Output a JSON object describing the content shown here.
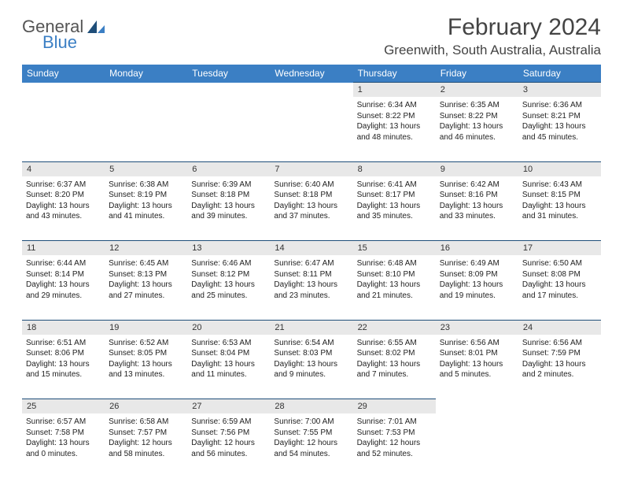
{
  "logo": {
    "text1": "General",
    "text2": "Blue"
  },
  "title": "February 2024",
  "location": "Greenwith, South Australia, Australia",
  "colors": {
    "header_bg": "#3b7fc4",
    "header_text": "#ffffff",
    "daynum_bg": "#e8e8e8",
    "daynum_border": "#1f4e79",
    "body_text": "#222222",
    "title_text": "#444444",
    "logo_gray": "#555555",
    "logo_blue": "#3b7fc4",
    "page_bg": "#ffffff"
  },
  "weekdays": [
    "Sunday",
    "Monday",
    "Tuesday",
    "Wednesday",
    "Thursday",
    "Friday",
    "Saturday"
  ],
  "weeks": [
    {
      "nums": [
        "",
        "",
        "",
        "",
        "1",
        "2",
        "3"
      ],
      "cells": [
        null,
        null,
        null,
        null,
        {
          "sr": "Sunrise: 6:34 AM",
          "ss": "Sunset: 8:22 PM",
          "d1": "Daylight: 13 hours",
          "d2": "and 48 minutes."
        },
        {
          "sr": "Sunrise: 6:35 AM",
          "ss": "Sunset: 8:22 PM",
          "d1": "Daylight: 13 hours",
          "d2": "and 46 minutes."
        },
        {
          "sr": "Sunrise: 6:36 AM",
          "ss": "Sunset: 8:21 PM",
          "d1": "Daylight: 13 hours",
          "d2": "and 45 minutes."
        }
      ]
    },
    {
      "nums": [
        "4",
        "5",
        "6",
        "7",
        "8",
        "9",
        "10"
      ],
      "cells": [
        {
          "sr": "Sunrise: 6:37 AM",
          "ss": "Sunset: 8:20 PM",
          "d1": "Daylight: 13 hours",
          "d2": "and 43 minutes."
        },
        {
          "sr": "Sunrise: 6:38 AM",
          "ss": "Sunset: 8:19 PM",
          "d1": "Daylight: 13 hours",
          "d2": "and 41 minutes."
        },
        {
          "sr": "Sunrise: 6:39 AM",
          "ss": "Sunset: 8:18 PM",
          "d1": "Daylight: 13 hours",
          "d2": "and 39 minutes."
        },
        {
          "sr": "Sunrise: 6:40 AM",
          "ss": "Sunset: 8:18 PM",
          "d1": "Daylight: 13 hours",
          "d2": "and 37 minutes."
        },
        {
          "sr": "Sunrise: 6:41 AM",
          "ss": "Sunset: 8:17 PM",
          "d1": "Daylight: 13 hours",
          "d2": "and 35 minutes."
        },
        {
          "sr": "Sunrise: 6:42 AM",
          "ss": "Sunset: 8:16 PM",
          "d1": "Daylight: 13 hours",
          "d2": "and 33 minutes."
        },
        {
          "sr": "Sunrise: 6:43 AM",
          "ss": "Sunset: 8:15 PM",
          "d1": "Daylight: 13 hours",
          "d2": "and 31 minutes."
        }
      ]
    },
    {
      "nums": [
        "11",
        "12",
        "13",
        "14",
        "15",
        "16",
        "17"
      ],
      "cells": [
        {
          "sr": "Sunrise: 6:44 AM",
          "ss": "Sunset: 8:14 PM",
          "d1": "Daylight: 13 hours",
          "d2": "and 29 minutes."
        },
        {
          "sr": "Sunrise: 6:45 AM",
          "ss": "Sunset: 8:13 PM",
          "d1": "Daylight: 13 hours",
          "d2": "and 27 minutes."
        },
        {
          "sr": "Sunrise: 6:46 AM",
          "ss": "Sunset: 8:12 PM",
          "d1": "Daylight: 13 hours",
          "d2": "and 25 minutes."
        },
        {
          "sr": "Sunrise: 6:47 AM",
          "ss": "Sunset: 8:11 PM",
          "d1": "Daylight: 13 hours",
          "d2": "and 23 minutes."
        },
        {
          "sr": "Sunrise: 6:48 AM",
          "ss": "Sunset: 8:10 PM",
          "d1": "Daylight: 13 hours",
          "d2": "and 21 minutes."
        },
        {
          "sr": "Sunrise: 6:49 AM",
          "ss": "Sunset: 8:09 PM",
          "d1": "Daylight: 13 hours",
          "d2": "and 19 minutes."
        },
        {
          "sr": "Sunrise: 6:50 AM",
          "ss": "Sunset: 8:08 PM",
          "d1": "Daylight: 13 hours",
          "d2": "and 17 minutes."
        }
      ]
    },
    {
      "nums": [
        "18",
        "19",
        "20",
        "21",
        "22",
        "23",
        "24"
      ],
      "cells": [
        {
          "sr": "Sunrise: 6:51 AM",
          "ss": "Sunset: 8:06 PM",
          "d1": "Daylight: 13 hours",
          "d2": "and 15 minutes."
        },
        {
          "sr": "Sunrise: 6:52 AM",
          "ss": "Sunset: 8:05 PM",
          "d1": "Daylight: 13 hours",
          "d2": "and 13 minutes."
        },
        {
          "sr": "Sunrise: 6:53 AM",
          "ss": "Sunset: 8:04 PM",
          "d1": "Daylight: 13 hours",
          "d2": "and 11 minutes."
        },
        {
          "sr": "Sunrise: 6:54 AM",
          "ss": "Sunset: 8:03 PM",
          "d1": "Daylight: 13 hours",
          "d2": "and 9 minutes."
        },
        {
          "sr": "Sunrise: 6:55 AM",
          "ss": "Sunset: 8:02 PM",
          "d1": "Daylight: 13 hours",
          "d2": "and 7 minutes."
        },
        {
          "sr": "Sunrise: 6:56 AM",
          "ss": "Sunset: 8:01 PM",
          "d1": "Daylight: 13 hours",
          "d2": "and 5 minutes."
        },
        {
          "sr": "Sunrise: 6:56 AM",
          "ss": "Sunset: 7:59 PM",
          "d1": "Daylight: 13 hours",
          "d2": "and 2 minutes."
        }
      ]
    },
    {
      "nums": [
        "25",
        "26",
        "27",
        "28",
        "29",
        "",
        ""
      ],
      "cells": [
        {
          "sr": "Sunrise: 6:57 AM",
          "ss": "Sunset: 7:58 PM",
          "d1": "Daylight: 13 hours",
          "d2": "and 0 minutes."
        },
        {
          "sr": "Sunrise: 6:58 AM",
          "ss": "Sunset: 7:57 PM",
          "d1": "Daylight: 12 hours",
          "d2": "and 58 minutes."
        },
        {
          "sr": "Sunrise: 6:59 AM",
          "ss": "Sunset: 7:56 PM",
          "d1": "Daylight: 12 hours",
          "d2": "and 56 minutes."
        },
        {
          "sr": "Sunrise: 7:00 AM",
          "ss": "Sunset: 7:55 PM",
          "d1": "Daylight: 12 hours",
          "d2": "and 54 minutes."
        },
        {
          "sr": "Sunrise: 7:01 AM",
          "ss": "Sunset: 7:53 PM",
          "d1": "Daylight: 12 hours",
          "d2": "and 52 minutes."
        },
        null,
        null
      ]
    }
  ]
}
